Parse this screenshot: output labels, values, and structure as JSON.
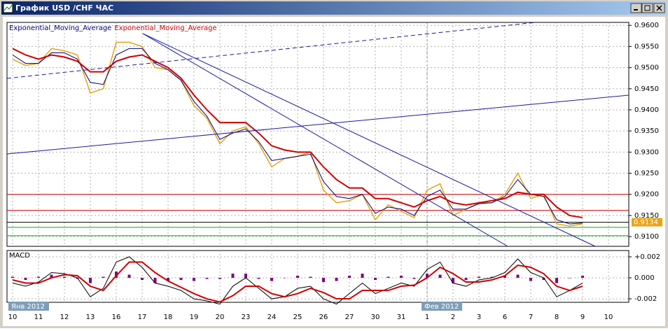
{
  "window_title": "График USD /CHF ЧАС",
  "chart_data": [
    {
      "type": "line",
      "categories": [
        "10",
        null,
        "11",
        null,
        "12",
        null,
        "13",
        null,
        "16",
        null,
        "17",
        null,
        "18",
        null,
        "19",
        null,
        "20",
        null,
        "23",
        null,
        "24",
        null,
        "25",
        null,
        "26",
        null,
        "27",
        null,
        "30",
        null,
        "31",
        null,
        "1",
        null,
        "2",
        null,
        "3",
        null,
        "6",
        null,
        "7",
        null,
        "8",
        null,
        "9",
        null,
        "10"
      ],
      "month_labels": [
        "Янв 2012",
        "Фев 2012"
      ],
      "series": [
        {
          "color": "#e8a317",
          "values": [
            0.952,
            0.9505,
            0.951,
            0.9545,
            0.954,
            0.953,
            0.944,
            0.945,
            0.956,
            0.956,
            0.955,
            0.95,
            0.9495,
            0.947,
            0.941,
            0.938,
            0.932,
            0.935,
            0.936,
            0.932,
            0.9265,
            0.9285,
            0.929,
            0.93,
            0.921,
            0.918,
            0.9185,
            0.92,
            0.914,
            0.9175,
            0.916,
            0.9145,
            0.921,
            0.9225,
            0.915,
            0.9165,
            0.918,
            0.918,
            0.92,
            0.925,
            0.919,
            0.92,
            0.913,
            0.9125,
            0.913,
            null,
            null
          ]
        },
        {
          "name": "Exponential_Moving_Average",
          "color": "#00007a",
          "values": [
            0.953,
            0.951,
            0.951,
            0.9535,
            0.9535,
            0.952,
            0.9465,
            0.946,
            0.953,
            0.9545,
            0.9545,
            0.951,
            0.9495,
            0.947,
            0.942,
            0.9385,
            0.933,
            0.9345,
            0.9355,
            0.9325,
            0.928,
            0.9285,
            0.929,
            0.9295,
            0.923,
            0.9195,
            0.919,
            0.92,
            0.9155,
            0.917,
            0.9165,
            0.915,
            0.9195,
            0.921,
            0.9165,
            0.9165,
            0.9178,
            0.918,
            0.9195,
            0.9235,
            0.92,
            0.9195,
            0.914,
            0.913,
            0.9132,
            null,
            null
          ]
        },
        {
          "name": "Exponential_Moving_Average",
          "color": "#d00000",
          "values": [
            0.9545,
            0.953,
            0.952,
            0.953,
            0.9525,
            0.9515,
            0.949,
            0.949,
            0.9515,
            0.9525,
            0.953,
            0.9515,
            0.95,
            0.9475,
            0.9435,
            0.94,
            0.937,
            0.937,
            0.937,
            0.9345,
            0.9315,
            0.9305,
            0.93,
            0.93,
            0.9265,
            0.9235,
            0.9215,
            0.9215,
            0.919,
            0.919,
            0.918,
            0.917,
            0.9185,
            0.9195,
            0.918,
            0.9175,
            0.918,
            0.9185,
            0.919,
            0.9205,
            0.92,
            0.92,
            0.917,
            0.915,
            0.9145,
            null,
            null
          ]
        }
      ],
      "levels": [
        {
          "value": 0.92,
          "color": "#d00000"
        },
        {
          "value": 0.9162,
          "color": "#d00000"
        },
        {
          "value": 0.9134,
          "color": "#000000"
        },
        {
          "value": 0.9122,
          "color": "#00b000"
        },
        {
          "value": 0.9102,
          "color": "#00b000"
        }
      ],
      "last_price": 0.9134,
      "ylim": [
        0.9077,
        0.9607
      ],
      "yticks": [
        {
          "value": 0.96,
          "label": "0.9600"
        },
        {
          "value": 0.955,
          "label": "0.9550"
        },
        {
          "value": 0.95,
          "label": "0.9500"
        },
        {
          "value": 0.945,
          "label": "0.9450"
        },
        {
          "value": 0.94,
          "label": "0.9400"
        },
        {
          "value": 0.935,
          "label": "0.9350"
        },
        {
          "value": 0.93,
          "label": "0.9300"
        },
        {
          "value": 0.925,
          "label": "0.9250"
        },
        {
          "value": 0.92,
          "label": "0.9200"
        },
        {
          "value": 0.915,
          "label": "0.9150"
        },
        {
          "value": 0.91,
          "label": "0.9100"
        }
      ],
      "grid": true
    },
    {
      "type": "line",
      "title": "MACD",
      "histogram": {
        "color": "#800080",
        "values": [
          0.0001,
          -0.0002,
          0.0001,
          0.0003,
          0.0001,
          -0.0001,
          -0.0005,
          0.0001,
          0.0006,
          0.0003,
          -0.0002,
          -0.0005,
          -0.0003,
          -0.0002,
          -0.0003,
          -0.0001,
          -0.0001,
          0.0004,
          0.0004,
          -0.0001,
          -0.0003,
          0.0,
          0.0002,
          0.0001,
          -0.0004,
          -0.0003,
          0.0002,
          0.0004,
          -0.0002,
          0.0001,
          0.0002,
          -0.0001,
          0.0004,
          0.0003,
          -0.0005,
          -0.0002,
          0.0001,
          0.0001,
          0.0002,
          0.0003,
          -0.0003,
          -0.0002,
          -0.0005,
          0.0,
          0.0002,
          null,
          null
        ]
      },
      "series": [
        {
          "color": "#000000",
          "values": [
            -0.0005,
            -0.0008,
            -0.0004,
            0.0005,
            0.0004,
            0.0,
            -0.0018,
            -0.001,
            0.0015,
            0.002,
            0.001,
            -0.0005,
            -0.0008,
            -0.0012,
            -0.002,
            -0.0022,
            -0.0025,
            -0.0008,
            0.0,
            -0.001,
            -0.002,
            -0.0018,
            -0.001,
            -0.0008,
            -0.002,
            -0.0025,
            -0.0015,
            -0.0005,
            -0.0015,
            -0.001,
            -0.0005,
            -0.0008,
            0.0008,
            0.0015,
            -0.0005,
            -0.0008,
            -0.0002,
            0.0,
            0.0005,
            0.0018,
            0.0005,
            0.0,
            -0.0018,
            -0.0012,
            -0.0005,
            null,
            null
          ]
        },
        {
          "color": "#d00000",
          "values": [
            -0.0002,
            -0.0005,
            -0.0005,
            0.0,
            0.0003,
            0.0002,
            -0.0008,
            -0.0012,
            0.0002,
            0.0015,
            0.0015,
            0.0005,
            -0.0003,
            -0.0009,
            -0.0015,
            -0.002,
            -0.0023,
            -0.0017,
            -0.0008,
            -0.0008,
            -0.0015,
            -0.0018,
            -0.0015,
            -0.001,
            -0.0014,
            -0.002,
            -0.002,
            -0.0012,
            -0.0012,
            -0.0012,
            -0.0008,
            -0.0007,
            0.0,
            0.001,
            0.0004,
            -0.0004,
            -0.0004,
            -0.0002,
            0.0002,
            0.0012,
            0.001,
            0.0004,
            -0.0008,
            -0.0012,
            -0.0008,
            null,
            null
          ]
        }
      ],
      "ylim": [
        -0.00233,
        0.0026
      ],
      "yticks": [
        {
          "value": 0.002,
          "label": "+0.002"
        },
        {
          "value": 0,
          "label": "0.000"
        },
        {
          "value": -0.002,
          "label": "-0.002"
        }
      ],
      "grid": true
    }
  ]
}
